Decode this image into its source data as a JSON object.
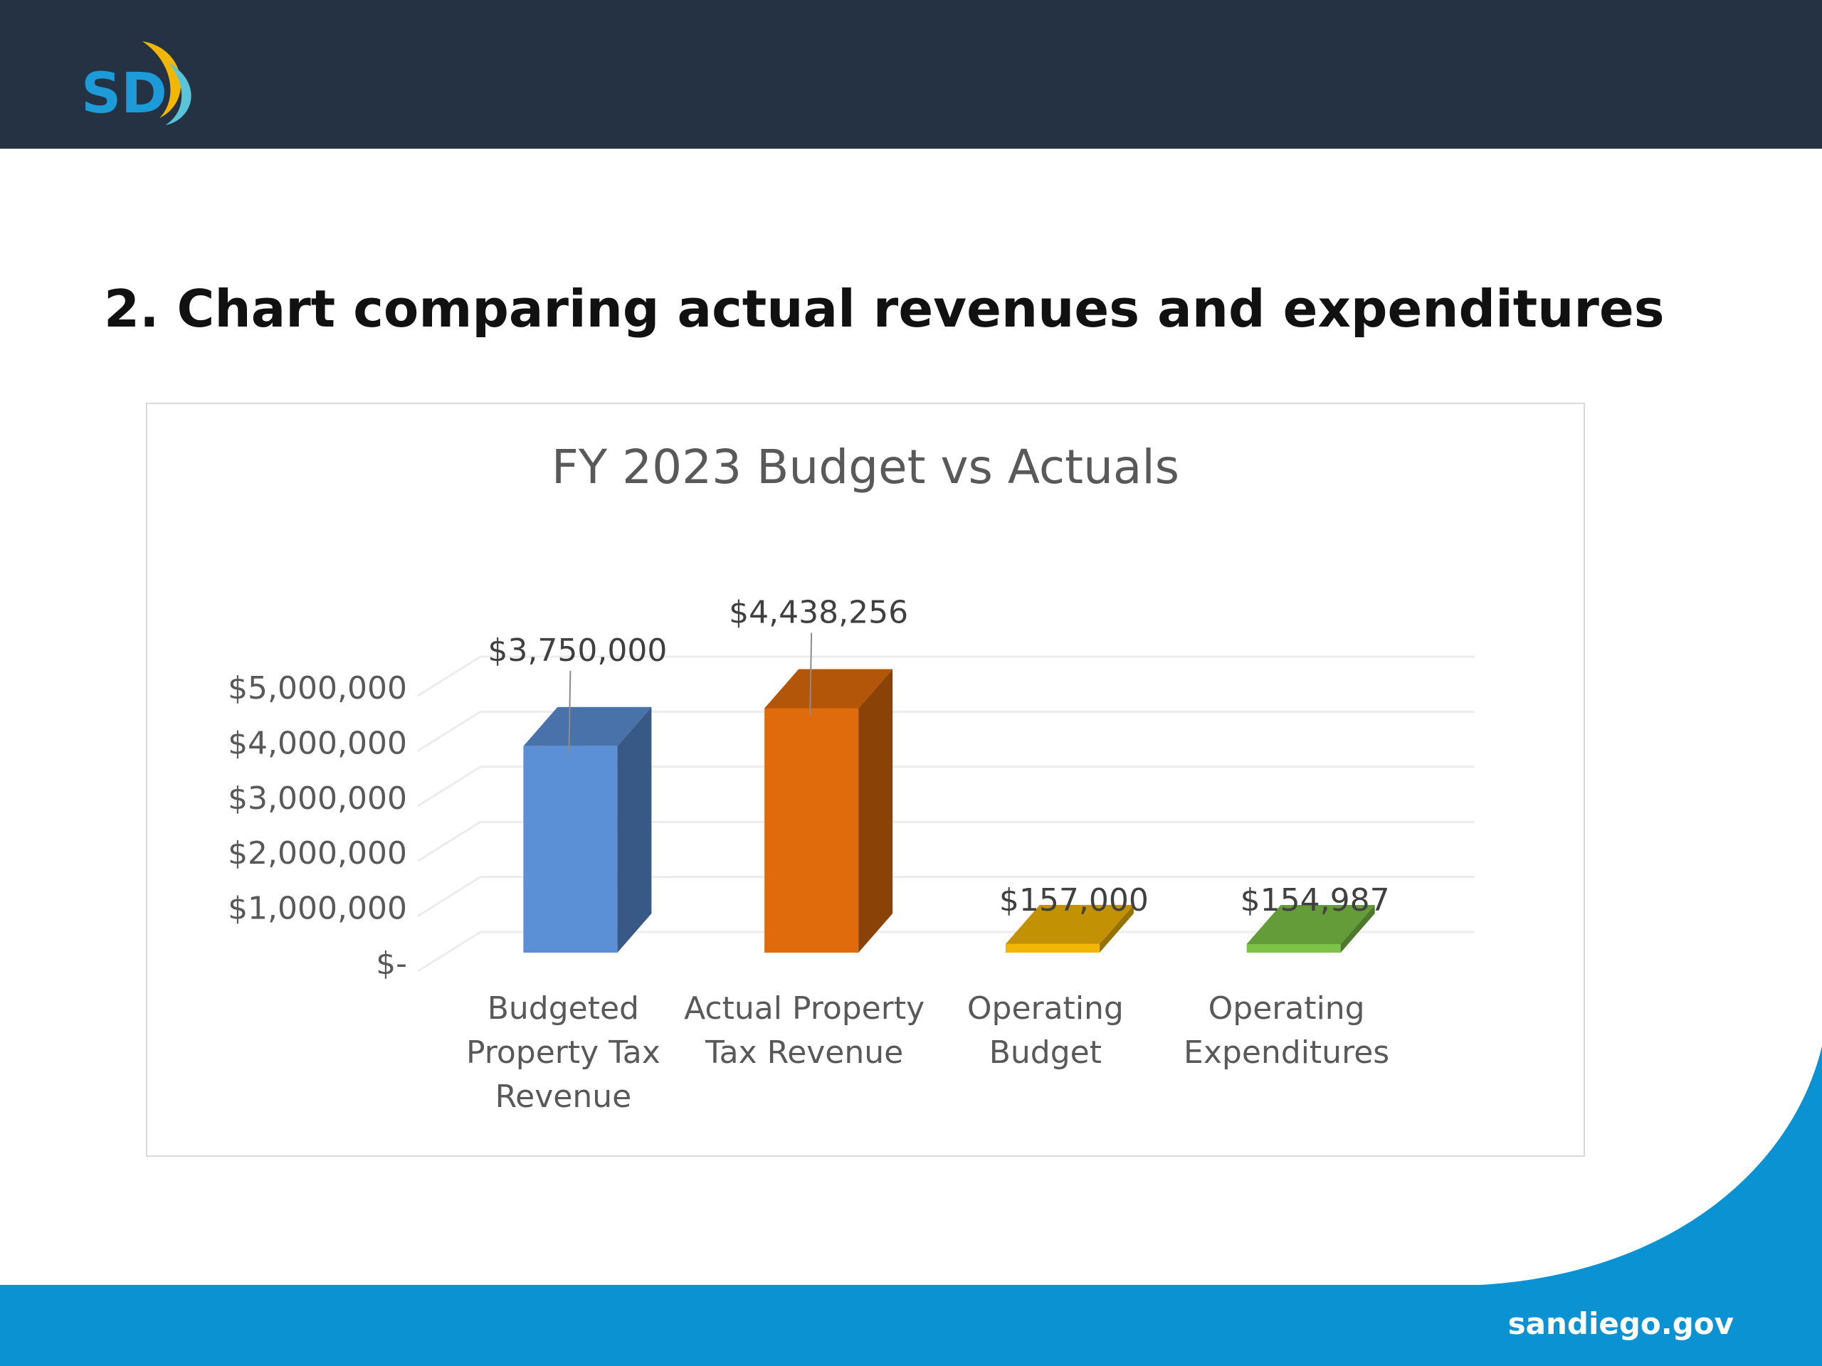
{
  "header": {
    "logo_text": "SD"
  },
  "slide": {
    "title": "2. Chart comparing actual revenues and expenditures"
  },
  "footer": {
    "url": "sandiego.gov"
  },
  "colors": {
    "header_bg": "#243243",
    "footer_blue": "#0b92d2",
    "bar_blue": "#5b8fd6",
    "bar_orange": "#e06b0c",
    "bar_gold": "#f2b705",
    "bar_green": "#7cc347"
  },
  "chart_data": {
    "type": "bar",
    "style": "3d-column",
    "title": "FY 2023 Budget vs Actuals",
    "categories": [
      [
        "Budgeted",
        "Property Tax",
        "Revenue"
      ],
      [
        "Actual Property",
        "Tax Revenue"
      ],
      [
        "Operating",
        "Budget"
      ],
      [
        "Operating",
        "Expenditures"
      ]
    ],
    "values": [
      3750000,
      4438256,
      157000,
      154987
    ],
    "data_labels": [
      "$3,750,000",
      "$4,438,256",
      "$157,000",
      "$154,987"
    ],
    "bar_colors": [
      "#5b8fd6",
      "#e06b0c",
      "#f2b705",
      "#7cc347"
    ],
    "y_ticks": [
      {
        "value": 0,
        "label": "$-"
      },
      {
        "value": 1000000,
        "label": "$1,000,000"
      },
      {
        "value": 2000000,
        "label": "$2,000,000"
      },
      {
        "value": 3000000,
        "label": "$3,000,000"
      },
      {
        "value": 4000000,
        "label": "$4,000,000"
      },
      {
        "value": 5000000,
        "label": "$5,000,000"
      }
    ],
    "ylim": [
      0,
      5000000
    ],
    "grid": true,
    "legend": "none"
  }
}
